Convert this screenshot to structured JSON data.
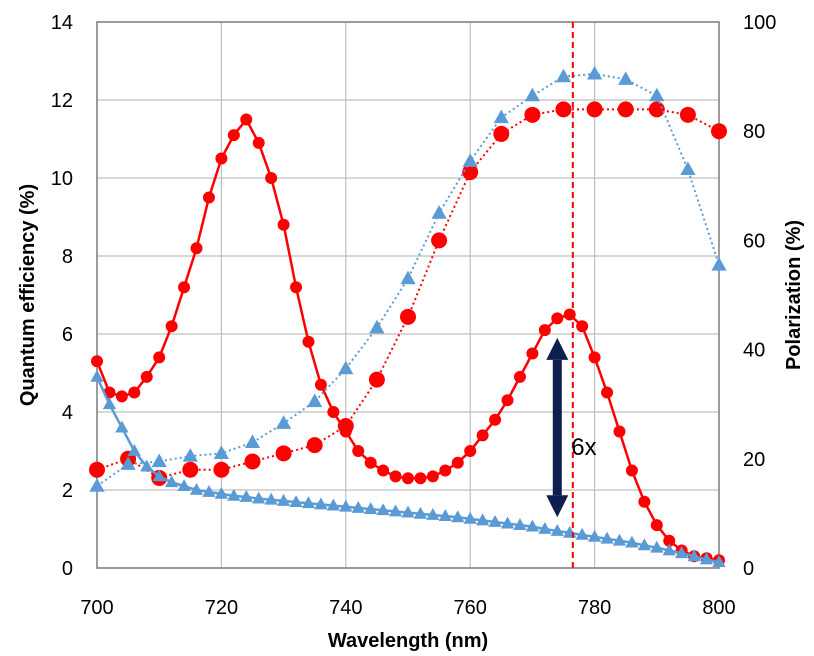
{
  "chart_data": {
    "type": "line",
    "title": "",
    "xlabel": "Wavelength (nm)",
    "ylabel_left": "Quantum efficiency (%)",
    "ylabel_right": "Polarization (%)",
    "xlim": [
      700,
      800
    ],
    "ylim_left": [
      0,
      14
    ],
    "ylim_right": [
      0,
      100
    ],
    "x_ticks": [
      "700",
      "720",
      "740",
      "760",
      "780",
      "800"
    ],
    "y_ticks_left": [
      "0",
      "2",
      "4",
      "6",
      "8",
      "10",
      "12",
      "14"
    ],
    "y_ticks_right": [
      "0",
      "20",
      "40",
      "60",
      "80",
      "100"
    ],
    "grid": true,
    "vline": {
      "x": 776.5,
      "color": "#ff0000"
    },
    "annotation": {
      "text": "6x",
      "x": 774,
      "y_top": 5.9,
      "y_bottom": 1.3,
      "color": "#0d1f4f"
    },
    "series": [
      {
        "style": "red-solid-qe-left",
        "axis": "left",
        "color": "#ff0000",
        "marker": "circle",
        "x": [
          700,
          702,
          704,
          706,
          708,
          710,
          712,
          714,
          716,
          718,
          720,
          722,
          724,
          726,
          728,
          730,
          732,
          734,
          736,
          738,
          740,
          742,
          744,
          746,
          748,
          750,
          752,
          754,
          756,
          758,
          760,
          762,
          764,
          766,
          768,
          770,
          772,
          774,
          776,
          778,
          780,
          782,
          784,
          786,
          788,
          790,
          792,
          794,
          796,
          798,
          800
        ],
        "y": [
          5.3,
          4.5,
          4.4,
          4.5,
          4.9,
          5.4,
          6.2,
          7.2,
          8.2,
          9.5,
          10.5,
          11.1,
          11.5,
          10.9,
          10.0,
          8.8,
          7.2,
          5.8,
          4.7,
          4.0,
          3.5,
          3.0,
          2.7,
          2.5,
          2.35,
          2.3,
          2.3,
          2.35,
          2.5,
          2.7,
          3.0,
          3.4,
          3.8,
          4.3,
          4.9,
          5.5,
          6.1,
          6.4,
          6.5,
          6.2,
          5.4,
          4.5,
          3.5,
          2.5,
          1.7,
          1.1,
          0.7,
          0.45,
          0.3,
          0.25,
          0.2
        ]
      },
      {
        "style": "red-dotted-polarization-right",
        "axis": "right",
        "color": "#ff0000",
        "marker": "circle-large",
        "x": [
          700,
          705,
          710,
          715,
          720,
          725,
          730,
          735,
          740,
          745,
          750,
          755,
          760,
          765,
          770,
          775,
          780,
          785,
          790,
          795,
          800
        ],
        "y": [
          18,
          20,
          16.5,
          18,
          18,
          19.5,
          21,
          22.5,
          26,
          34.5,
          46,
          60,
          72.5,
          79.5,
          83,
          84,
          84,
          84,
          84,
          83,
          80
        ]
      },
      {
        "style": "blue-dotted-polarization-right",
        "axis": "right",
        "color": "#5b9bd5",
        "marker": "triangle",
        "x": [
          700,
          705,
          710,
          715,
          720,
          725,
          730,
          735,
          740,
          745,
          750,
          755,
          760,
          765,
          770,
          775,
          780,
          785,
          790,
          795,
          800
        ],
        "y": [
          15,
          19,
          19.5,
          20.5,
          21,
          23,
          26.5,
          30.5,
          36.5,
          44,
          53,
          65,
          74.5,
          82.5,
          86.5,
          90,
          90.5,
          89.5,
          86.5,
          73,
          55.5
        ]
      },
      {
        "style": "blue-solid-qe-left",
        "axis": "left",
        "color": "#5b9bd5",
        "marker": "triangle",
        "x": [
          700,
          702,
          704,
          706,
          708,
          710,
          712,
          714,
          716,
          718,
          720,
          722,
          724,
          726,
          728,
          730,
          732,
          734,
          736,
          738,
          740,
          742,
          744,
          746,
          748,
          750,
          752,
          754,
          756,
          758,
          760,
          762,
          764,
          766,
          768,
          770,
          772,
          774,
          776,
          778,
          780,
          782,
          784,
          786,
          788,
          790,
          792,
          794,
          796,
          798,
          800
        ],
        "y": [
          4.9,
          4.2,
          3.6,
          3.0,
          2.6,
          2.35,
          2.2,
          2.1,
          2.0,
          1.95,
          1.9,
          1.85,
          1.82,
          1.78,
          1.75,
          1.72,
          1.69,
          1.66,
          1.63,
          1.6,
          1.57,
          1.54,
          1.51,
          1.48,
          1.45,
          1.42,
          1.39,
          1.36,
          1.33,
          1.3,
          1.26,
          1.22,
          1.18,
          1.14,
          1.1,
          1.06,
          1.0,
          0.95,
          0.9,
          0.85,
          0.8,
          0.75,
          0.7,
          0.65,
          0.58,
          0.52,
          0.45,
          0.38,
          0.3,
          0.22,
          0.15
        ]
      }
    ]
  }
}
